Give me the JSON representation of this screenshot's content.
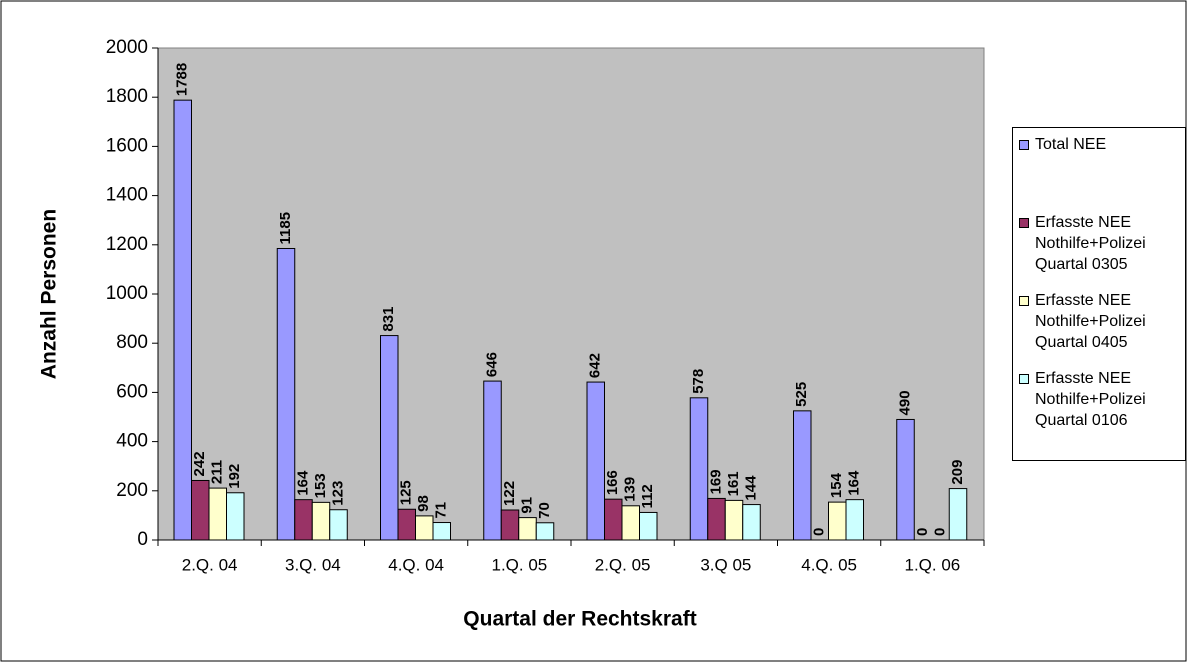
{
  "chart_data": {
    "type": "bar",
    "x_label": "Quartal der Rechtskraft",
    "y_label": "Anzahl Personen",
    "categories": [
      "2.Q. 04",
      "3.Q. 04",
      "4.Q. 04",
      "1.Q. 05",
      "2.Q. 05",
      "3.Q 05",
      "4.Q. 05",
      "1.Q. 06"
    ],
    "series": [
      {
        "name": "Total NEE",
        "color": "#9999ff",
        "values": [
          1788,
          1185,
          831,
          646,
          642,
          578,
          525,
          490
        ]
      },
      {
        "name": "Erfasste NEE Nothilfe+Polizei Quartal 0305",
        "color": "#993366",
        "values": [
          242,
          164,
          125,
          122,
          166,
          169,
          0,
          0
        ]
      },
      {
        "name": "Erfasste NEE Nothilfe+Polizei Quartal 0405",
        "color": "#ffffcc",
        "values": [
          211,
          153,
          98,
          91,
          139,
          161,
          154,
          0
        ]
      },
      {
        "name": "Erfasste NEE Nothilfe+Polizei Quartal 0106",
        "color": "#ccffff",
        "values": [
          192,
          123,
          71,
          70,
          112,
          144,
          164,
          209
        ]
      }
    ],
    "ylim": [
      0,
      2000
    ],
    "yticks": [
      0,
      200,
      400,
      600,
      800,
      1000,
      1200,
      1400,
      1600,
      1800,
      2000
    ],
    "plot_background": "#c0c0c0",
    "legend": "right",
    "grid": false
  }
}
